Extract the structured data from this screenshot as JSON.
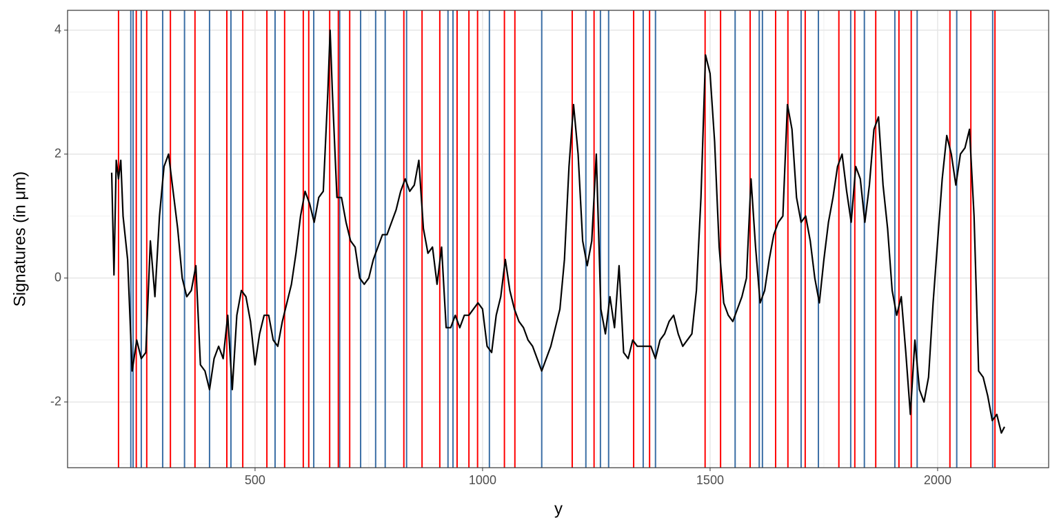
{
  "chart_data": {
    "type": "line",
    "x_label": "y",
    "y_label": "Signatures (in μm)",
    "xlim": [
      88,
      2244
    ],
    "ylim": [
      -3.06,
      4.32
    ],
    "xticks": [
      500,
      1000,
      1500,
      2000
    ],
    "yticks": [
      -2,
      0,
      2,
      4
    ],
    "grid": true,
    "vlines": [
      {
        "color": "#3a6ea5",
        "x": [
          227,
          232,
          250,
          297,
          345,
          400,
          447,
          544,
          629,
          686,
          732,
          765,
          786,
          833,
          924,
          935,
          1015,
          1130,
          1227,
          1259,
          1277,
          1353,
          1380,
          1555,
          1608,
          1615,
          1700,
          1738,
          1809,
          1839,
          1906,
          1955,
          2042,
          2121
        ]
      },
      {
        "color": "#ff0000",
        "x": [
          200,
          239,
          262,
          314,
          368,
          438,
          473,
          526,
          565,
          606,
          618,
          664,
          683,
          708,
          827,
          867,
          906,
          944,
          970,
          989,
          1048,
          1071,
          1197,
          1245,
          1332,
          1367,
          1489,
          1523,
          1588,
          1644,
          1671,
          1709,
          1783,
          1818,
          1864,
          1915,
          1942,
          2027,
          2073,
          2126
        ]
      }
    ],
    "series": [
      {
        "color": "#000000",
        "x": [
          185,
          190,
          195,
          200,
          205,
          210,
          220,
          230,
          240,
          250,
          260,
          270,
          280,
          290,
          300,
          310,
          320,
          330,
          340,
          350,
          360,
          370,
          380,
          390,
          400,
          410,
          420,
          430,
          440,
          450,
          460,
          470,
          480,
          490,
          500,
          510,
          520,
          530,
          540,
          550,
          560,
          570,
          580,
          590,
          600,
          610,
          620,
          630,
          640,
          650,
          660,
          665,
          670,
          680,
          690,
          700,
          710,
          720,
          730,
          740,
          750,
          760,
          770,
          780,
          790,
          800,
          810,
          820,
          830,
          840,
          850,
          860,
          870,
          880,
          890,
          900,
          910,
          920,
          930,
          940,
          950,
          960,
          970,
          980,
          990,
          1000,
          1010,
          1020,
          1030,
          1040,
          1050,
          1060,
          1070,
          1080,
          1090,
          1100,
          1110,
          1120,
          1130,
          1140,
          1150,
          1160,
          1170,
          1180,
          1190,
          1200,
          1210,
          1220,
          1230,
          1240,
          1250,
          1260,
          1270,
          1280,
          1290,
          1300,
          1310,
          1320,
          1330,
          1340,
          1350,
          1360,
          1370,
          1380,
          1390,
          1400,
          1410,
          1420,
          1430,
          1440,
          1450,
          1460,
          1470,
          1480,
          1490,
          1500,
          1510,
          1520,
          1530,
          1540,
          1550,
          1560,
          1570,
          1580,
          1590,
          1600,
          1610,
          1620,
          1630,
          1640,
          1650,
          1660,
          1670,
          1680,
          1690,
          1700,
          1710,
          1720,
          1730,
          1740,
          1750,
          1760,
          1770,
          1780,
          1790,
          1800,
          1810,
          1820,
          1830,
          1840,
          1850,
          1860,
          1870,
          1880,
          1890,
          1900,
          1910,
          1920,
          1930,
          1940,
          1950,
          1960,
          1970,
          1980,
          1990,
          2000,
          2010,
          2020,
          2030,
          2040,
          2050,
          2060,
          2070,
          2080,
          2090,
          2100,
          2110,
          2120,
          2130,
          2140,
          2147
        ],
        "values": [
          1.7,
          0.05,
          1.9,
          1.6,
          1.9,
          1.0,
          0.3,
          -1.5,
          -1.0,
          -1.3,
          -1.2,
          0.6,
          -0.3,
          1.0,
          1.8,
          2.0,
          1.4,
          0.8,
          0.0,
          -0.3,
          -0.2,
          0.2,
          -1.4,
          -1.5,
          -1.8,
          -1.3,
          -1.1,
          -1.3,
          -0.6,
          -1.8,
          -0.6,
          -0.2,
          -0.3,
          -0.7,
          -1.4,
          -0.9,
          -0.6,
          -0.6,
          -1.0,
          -1.1,
          -0.7,
          -0.4,
          -0.1,
          0.4,
          1.0,
          1.4,
          1.2,
          0.9,
          1.3,
          1.4,
          3.0,
          4.0,
          3.0,
          1.3,
          1.3,
          0.9,
          0.6,
          0.5,
          0.0,
          -0.1,
          0.0,
          0.3,
          0.5,
          0.7,
          0.7,
          0.9,
          1.1,
          1.4,
          1.6,
          1.4,
          1.5,
          1.9,
          0.8,
          0.4,
          0.5,
          -0.1,
          0.5,
          -0.8,
          -0.8,
          -0.6,
          -0.8,
          -0.6,
          -0.6,
          -0.5,
          -0.4,
          -0.5,
          -1.1,
          -1.2,
          -0.6,
          -0.3,
          0.3,
          -0.2,
          -0.5,
          -0.7,
          -0.8,
          -1.0,
          -1.1,
          -1.3,
          -1.5,
          -1.3,
          -1.1,
          -0.8,
          -0.5,
          0.3,
          1.8,
          2.8,
          2.0,
          0.6,
          0.2,
          0.6,
          2.0,
          -0.5,
          -0.9,
          -0.3,
          -0.8,
          0.2,
          -1.2,
          -1.3,
          -1.0,
          -1.1,
          -1.1,
          -1.1,
          -1.1,
          -1.3,
          -1.0,
          -0.9,
          -0.7,
          -0.6,
          -0.9,
          -1.1,
          -1.0,
          -0.9,
          -0.2,
          1.3,
          3.6,
          3.3,
          2.2,
          0.5,
          -0.4,
          -0.6,
          -0.7,
          -0.5,
          -0.3,
          0.0,
          1.6,
          0.5,
          -0.4,
          -0.2,
          0.3,
          0.7,
          0.9,
          1.0,
          2.8,
          2.4,
          1.3,
          0.9,
          1.0,
          0.6,
          0.0,
          -0.4,
          0.3,
          0.9,
          1.3,
          1.8,
          2.0,
          1.4,
          0.9,
          1.8,
          1.6,
          0.9,
          1.5,
          2.4,
          2.6,
          1.5,
          0.8,
          -0.2,
          -0.6,
          -0.3,
          -1.2,
          -2.2,
          -1.0,
          -1.8,
          -2.0,
          -1.6,
          -0.4,
          0.6,
          1.6,
          2.3,
          2.0,
          1.5,
          2.0,
          2.1,
          2.4,
          1.0,
          -1.5,
          -1.6,
          -1.9,
          -2.3,
          -2.2,
          -2.5,
          -2.4
        ]
      }
    ]
  }
}
